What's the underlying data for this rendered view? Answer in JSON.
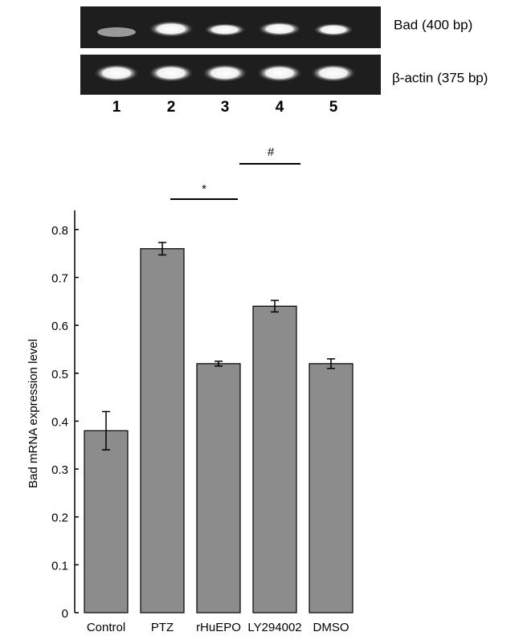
{
  "gel": {
    "rows": [
      "Bad (400 bp)",
      "β-actin (375 bp)"
    ],
    "lanes": [
      "1",
      "2",
      "3",
      "4",
      "5"
    ]
  },
  "chart_data": {
    "type": "bar",
    "ylabel": "Bad mRNA expression level",
    "categories": [
      "Control",
      "PTZ",
      "rHuEPO",
      "LY294002",
      "DMSO"
    ],
    "values": [
      0.38,
      0.76,
      0.52,
      0.64,
      0.52
    ],
    "errors": [
      0.04,
      0.013,
      0.005,
      0.012,
      0.01
    ],
    "color": "#8c8c8c",
    "ylim": [
      0,
      0.84
    ],
    "yticks": [
      0,
      0.1,
      0.2,
      0.3,
      0.4,
      0.5,
      0.6,
      0.7,
      0.8
    ],
    "annotations": [
      "*",
      "#"
    ]
  }
}
